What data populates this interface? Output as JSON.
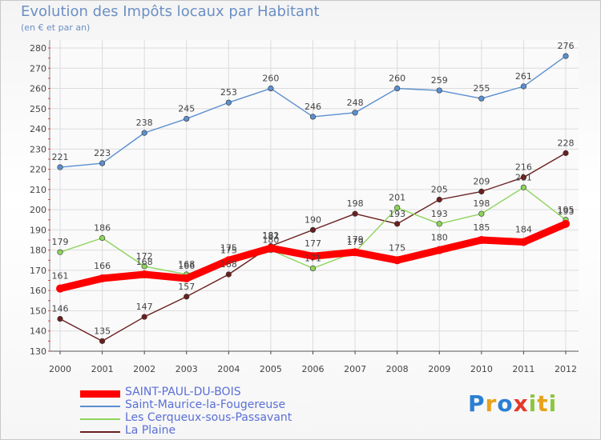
{
  "chart_data": {
    "type": "line",
    "title": "Evolution des Impôts locaux par Habitant",
    "subtitle": "(en € et par an)",
    "xlabel": "",
    "ylabel": "",
    "categories": [
      "2000",
      "2001",
      "2002",
      "2003",
      "2004",
      "2005",
      "2006",
      "2007",
      "2008",
      "2009",
      "2010",
      "2011",
      "2012"
    ],
    "ylim": [
      130,
      280
    ],
    "yticks": [
      130,
      140,
      150,
      160,
      170,
      180,
      190,
      200,
      210,
      220,
      230,
      240,
      250,
      260,
      270,
      280
    ],
    "grid": true,
    "legend_position": "bottom-left",
    "series": [
      {
        "name": "SAINT-PAUL-DU-BOIS",
        "color": "#ff0000",
        "values": [
          161,
          166,
          168,
          166,
          175,
          181,
          177,
          179,
          175,
          180,
          185,
          184,
          193
        ]
      },
      {
        "name": "Saint-Maurice-la-Fougereuse",
        "color": "#5b8fcf",
        "values": [
          221,
          223,
          238,
          245,
          253,
          260,
          246,
          248,
          260,
          259,
          255,
          261,
          276
        ]
      },
      {
        "name": "Les Cerqueux-sous-Passavant",
        "color": "#8ed45c",
        "values": [
          179,
          186,
          172,
          168,
          175,
          180,
          171,
          179,
          201,
          193,
          198,
          211,
          195
        ]
      },
      {
        "name": "La Plaine",
        "color": "#6b1f1f",
        "values": [
          146,
          135,
          147,
          157,
          168,
          182,
          190,
          198,
          193,
          205,
          209,
          216,
          228
        ]
      }
    ]
  },
  "logo": {
    "text": "Proxiti",
    "letters": [
      "P",
      "r",
      "o",
      "x",
      "i",
      "t",
      "i"
    ]
  }
}
